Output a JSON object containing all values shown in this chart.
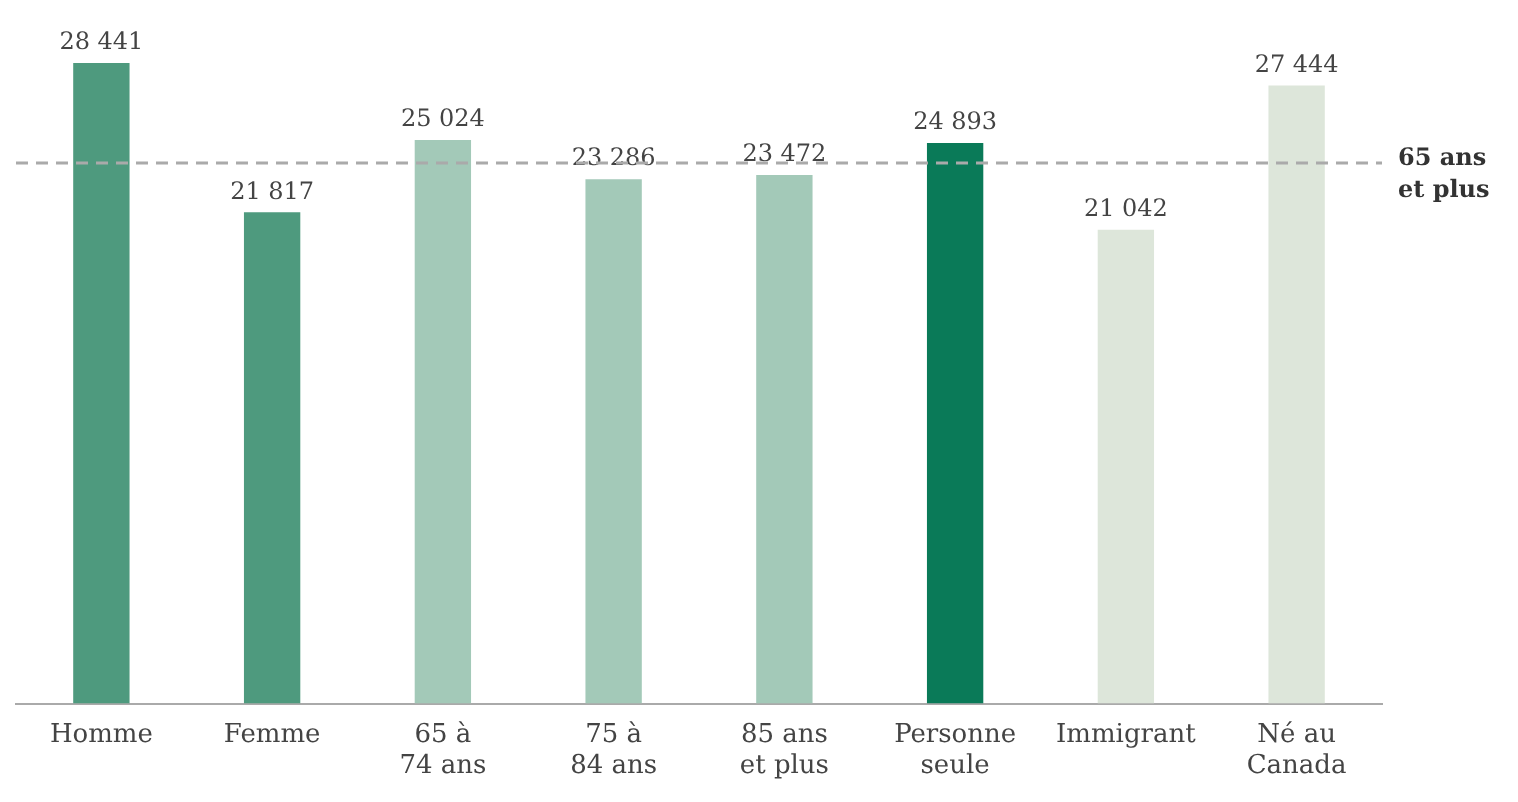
{
  "chart_data": {
    "type": "bar",
    "categories": [
      "Homme",
      "Femme",
      "65 à\n74 ans",
      "75 à\n84 ans",
      "85 ans\net plus",
      "Personne\nseule",
      "Immigrant",
      "Né au\nCanada"
    ],
    "values": [
      28441,
      21817,
      25024,
      23286,
      23472,
      24893,
      21042,
      27444
    ],
    "colors": [
      "#4e9a7e",
      "#4e9a7e",
      "#a3c9b8",
      "#a3c9b8",
      "#a3c9b8",
      "#0a7a58",
      "#dde6da",
      "#dde6da"
    ],
    "value_labels": [
      "28 441",
      "21 817",
      "25 024",
      "23 286",
      "23 472",
      "24 893",
      "21 042",
      "27 444"
    ],
    "relative": false,
    "grid": false,
    "legend": false,
    "ref_lines": [
      {
        "axis": "y",
        "value": 24000,
        "label": "65 ans\net plus",
        "color": "#aaaaaa",
        "line_style": "dashed"
      }
    ]
  }
}
